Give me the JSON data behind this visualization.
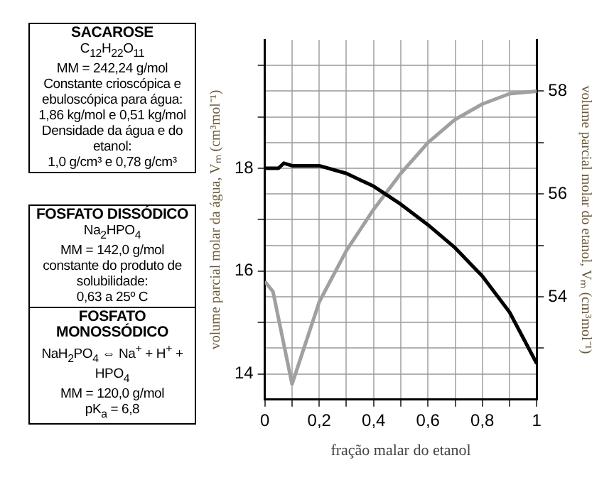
{
  "chart_data": [
    {
      "type": "other",
      "title": "SACAROSE",
      "annotations": [
        "C$_{12}$H$_{22}$O$_{11}$",
        "MM = 242,24 g/mol",
        "Constante crioscópica e ebuloscópica para água:",
        "1,86 kg/mol e 0,51 kg/mol",
        "Densidade da água e do etanol:",
        "1,0 g/cm³ e 0,78 g/cm³"
      ]
    },
    {
      "type": "other",
      "title": "FOSFATO DISSÓDICO",
      "annotations": [
        "Na$_{2}$HPO$_{4}$",
        "MM = 142,0 g/mol",
        "constante do produto de solubilidade:",
        "0,63 a 25º C"
      ]
    },
    {
      "type": "other",
      "title": "FOSFATO MONOSSÓDICO",
      "annotations": [
        "NaH$_{2}$PO$_{4}$ ⇔ Na$^{+}$ + H$^{+}$ + HPO$_{4}$",
        "MM = 120,0 g/mol",
        "pK$_{a}$ = 6,8"
      ]
    },
    {
      "type": "line",
      "xlabel": "fração malar do etanol",
      "ylabel": "volume parcial molar da água, Vₘ (cm³mol⁻¹)",
      "y2label": "volume parcial molar do etanol, Vₘ (cm³mol⁻¹)",
      "xlim": [
        0,
        1
      ],
      "ylim": [
        13.5,
        20.5
      ],
      "y2lim": [
        52,
        59
      ],
      "xticks": [
        {
          "value": 0,
          "label": "0"
        },
        {
          "value": 0.1,
          "label": null
        },
        {
          "value": 0.2,
          "label": "0,2"
        },
        {
          "value": 0.3,
          "label": null
        },
        {
          "value": 0.4,
          "label": "0,4"
        },
        {
          "value": 0.5,
          "label": null
        },
        {
          "value": 0.6,
          "label": "0,6"
        },
        {
          "value": 0.7,
          "label": null
        },
        {
          "value": 0.8,
          "label": "0,8"
        },
        {
          "value": 0.9,
          "label": null
        },
        {
          "value": 1,
          "label": "1"
        }
      ],
      "yticks": [
        14,
        {
          "value": 15,
          "label": null
        },
        16,
        {
          "value": 17,
          "label": null
        },
        18,
        {
          "value": 19,
          "label": null
        },
        {
          "value": 20,
          "label": null
        }
      ],
      "y2ticks": [
        {
          "value": 53,
          "label": null
        },
        54,
        {
          "value": 55,
          "label": null
        },
        56,
        {
          "value": 57,
          "label": null
        },
        58
      ],
      "grid": true,
      "legend": false,
      "marker": "none",
      "line_style": "solid",
      "series": [
        {
          "color": "#000000",
          "axis": "y",
          "x": [
            0,
            0.05,
            0.07,
            0.1,
            0.2,
            0.3,
            0.4,
            0.5,
            0.6,
            0.7,
            0.8,
            0.9,
            1
          ],
          "values": [
            18,
            18,
            18.1,
            18.05,
            18.05,
            17.9,
            17.65,
            17.3,
            16.9,
            16.45,
            15.9,
            15.2,
            14.2
          ]
        },
        {
          "color": "#a0a0a0",
          "axis": "y2",
          "x": [
            0,
            0.03,
            0.1,
            0.2,
            0.3,
            0.4,
            0.5,
            0.6,
            0.7,
            0.8,
            0.9,
            1
          ],
          "values": [
            54.3,
            54.1,
            52.3,
            53.9,
            54.9,
            55.7,
            56.4,
            57,
            57.45,
            57.75,
            57.95,
            58
          ]
        }
      ]
    }
  ]
}
